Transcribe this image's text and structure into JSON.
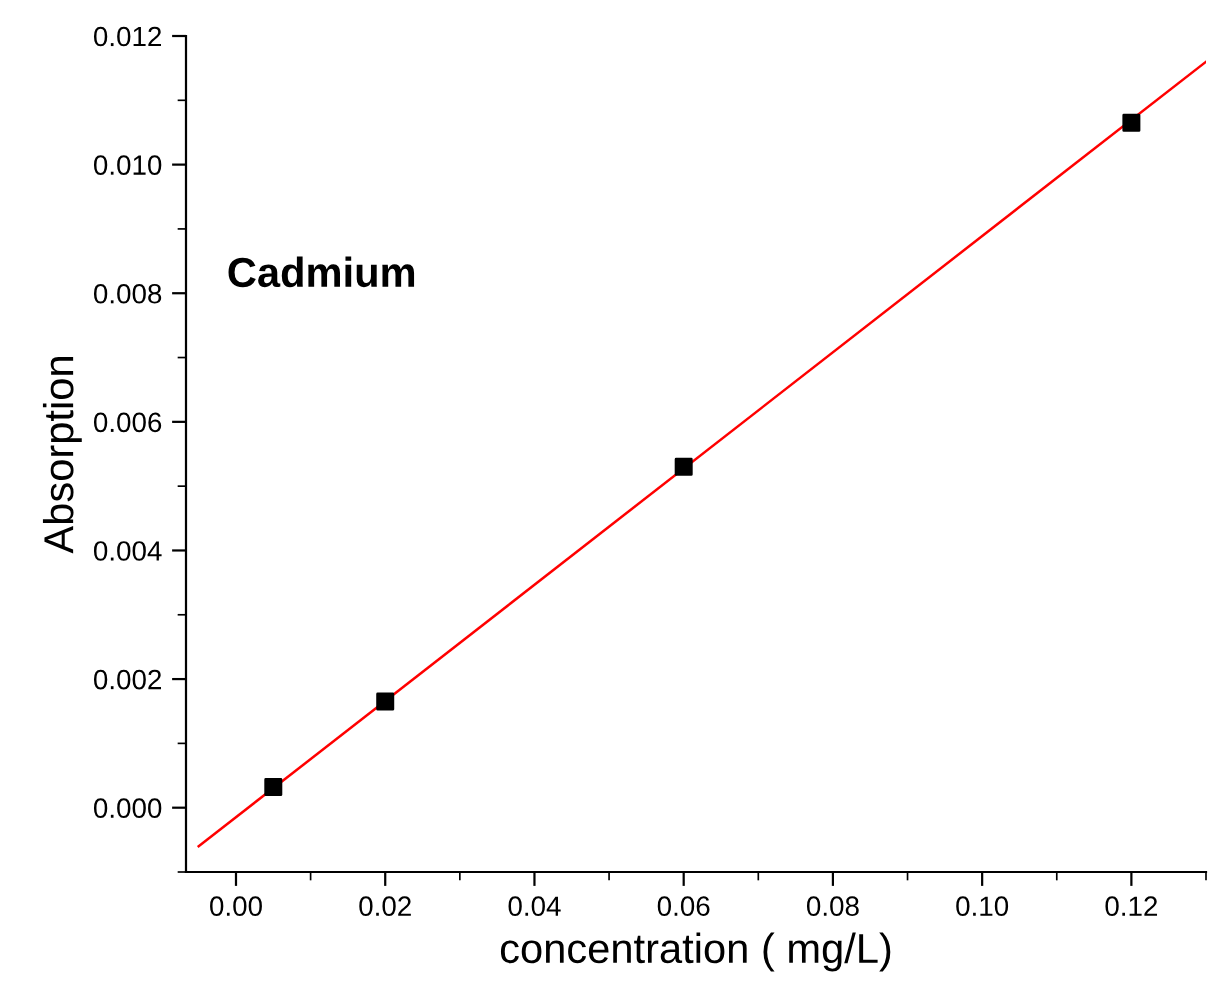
{
  "chart_data": {
    "type": "scatter",
    "xlabel": "concentration ( mg/L)",
    "ylabel": "Absorption",
    "annotations": [
      "Cadmium"
    ],
    "series": [
      {
        "color": "#000000",
        "marker": "square",
        "x": [
          0.005,
          0.02,
          0.06,
          0.12
        ],
        "values": [
          0.00032,
          0.00165,
          0.0053,
          0.01065
        ]
      },
      {
        "type": "line",
        "color": "#ff0000",
        "marker": "none",
        "x": [
          -0.005,
          0.13
        ],
        "values": [
          -0.0006,
          0.0116
        ]
      }
    ],
    "xlim": [
      -0.0067,
      0.13
    ],
    "ylim": [
      -0.001,
      0.012
    ],
    "xticks": [
      {
        "value": 0.0,
        "label": "0.00"
      },
      {
        "value": 0.02,
        "label": "0.02"
      },
      {
        "value": 0.04,
        "label": "0.04"
      },
      {
        "value": 0.06,
        "label": "0.06"
      },
      {
        "value": 0.08,
        "label": "0.08"
      },
      {
        "value": 0.1,
        "label": "0.10"
      },
      {
        "value": 0.12,
        "label": "0.12"
      }
    ],
    "yticks": [
      {
        "value": 0.0,
        "label": "0.000"
      },
      {
        "value": 0.002,
        "label": "0.002"
      },
      {
        "value": 0.004,
        "label": "0.004"
      },
      {
        "value": 0.006,
        "label": "0.006"
      },
      {
        "value": 0.008,
        "label": "0.008"
      },
      {
        "value": 0.01,
        "label": "0.010"
      },
      {
        "value": 0.012,
        "label": "0.012"
      }
    ],
    "grid": false,
    "legend": false
  }
}
